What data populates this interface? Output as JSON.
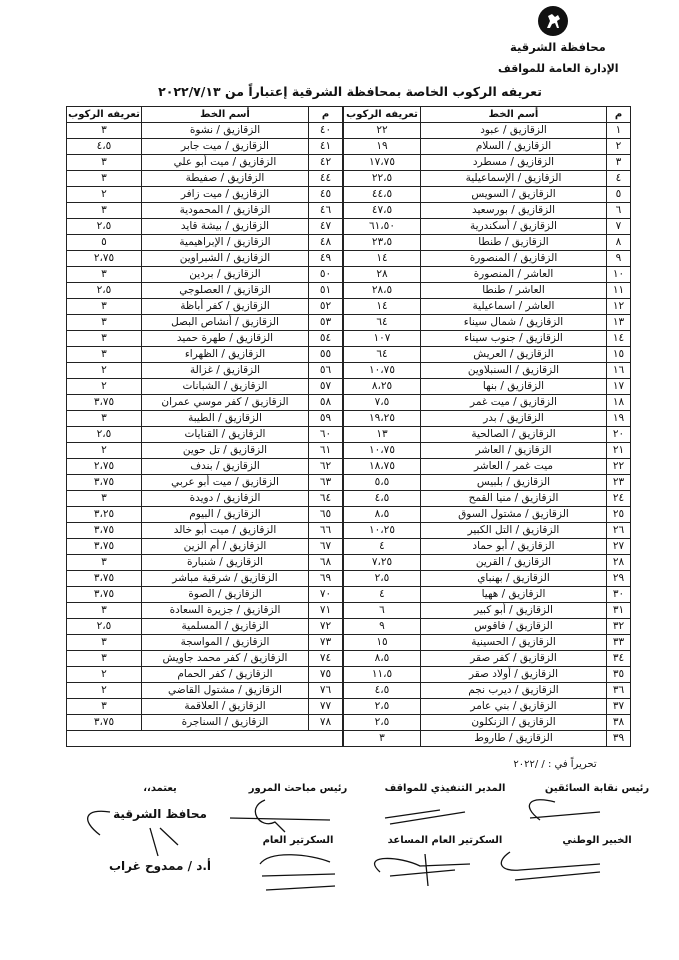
{
  "header": {
    "governorate": "محافظة الشرقية",
    "department": "الإدارة العامة للمواقف",
    "title": "تعريفه الركوب الخاصة بمحافظة الشرقية إعتباراً من ٢٠٢٢/٧/١٣"
  },
  "columns": {
    "num": "م",
    "line": "أسم الخط",
    "fare": "تعريفه الركوب"
  },
  "right_table": [
    [
      "١",
      "الزقازيق / عبود",
      "٢٢"
    ],
    [
      "٢",
      "الزقازيق / السلام",
      "١٩"
    ],
    [
      "٣",
      "الزقازيق / مسطرد",
      "١٧،٧٥"
    ],
    [
      "٤",
      "الزقازيق / الإسماعيلية",
      "٢٢،٥"
    ],
    [
      "٥",
      "الزقازيق / السويس",
      "٤٤،٥"
    ],
    [
      "٦",
      "الزقازيق / بورسعيد",
      "٤٧،٥"
    ],
    [
      "٧",
      "الزقازيق / أسكندرية",
      "٦١،٥٠"
    ],
    [
      "٨",
      "الزقازيق / طنطا",
      "٢٣،٥"
    ],
    [
      "٩",
      "الزقازيق / المنصورة",
      "١٤"
    ],
    [
      "١٠",
      "العاشر / المنصورة",
      "٢٨"
    ],
    [
      "١١",
      "العاشر / طنطا",
      "٢٨،٥"
    ],
    [
      "١٢",
      "العاشر / اسماعيلية",
      "١٤"
    ],
    [
      "١٣",
      "الزقازيق / شمال سيناء",
      "٦٤"
    ],
    [
      "١٤",
      "الزقازيق / جنوب سيناء",
      "١٠٧"
    ],
    [
      "١٥",
      "الزقازيق / العريش",
      "٦٤"
    ],
    [
      "١٦",
      "الزقازيق / السنبلاوين",
      "١٠،٧٥"
    ],
    [
      "١٧",
      "الزقازيق / بنها",
      "٨،٢٥"
    ],
    [
      "١٨",
      "الزقازيق / ميت غمر",
      "٧،٥"
    ],
    [
      "١٩",
      "الزقازيق / بدر",
      "١٩،٢٥"
    ],
    [
      "٢٠",
      "الزقازيق / الصالحية",
      "١٣"
    ],
    [
      "٢١",
      "الزقازيق / العاشر",
      "١٠،٧٥"
    ],
    [
      "٢٢",
      "ميت غمر / العاشر",
      "١٨،٧٥"
    ],
    [
      "٢٣",
      "الزقازيق / بلبيس",
      "٥،٥"
    ],
    [
      "٢٤",
      "الزقازيق / منيا القمح",
      "٤،٥"
    ],
    [
      "٢٥",
      "الزقازيق / مشتول السوق",
      "٨،٥"
    ],
    [
      "٢٦",
      "الزقازيق / التل الكبير",
      "١٠،٢٥"
    ],
    [
      "٢٧",
      "الزقازيق / أبو حماد",
      "٤"
    ],
    [
      "٢٨",
      "الزقازيق / القرين",
      "٧،٢٥"
    ],
    [
      "٢٩",
      "الزقازيق / بهنباي",
      "٢،٥"
    ],
    [
      "٣٠",
      "الزقازيق / ههيا",
      "٤"
    ],
    [
      "٣١",
      "الزقازيق / أبو كبير",
      "٦"
    ],
    [
      "٣٢",
      "الزقازيق / فاقوس",
      "٩"
    ],
    [
      "٣٣",
      "الزقازيق / الحسينية",
      "١٥"
    ],
    [
      "٣٤",
      "الزقازيق / كفر صقر",
      "٨،٥"
    ],
    [
      "٣٥",
      "الزقازيق / أولاد صقر",
      "١١،٥"
    ],
    [
      "٣٦",
      "الزقازيق / ديرب نجم",
      "٤،٥"
    ],
    [
      "٣٧",
      "الزقازيق / بني عامر",
      "٢،٥"
    ],
    [
      "٣٨",
      "الزقازيق / الزنكلون",
      "٢،٥"
    ],
    [
      "٣٩",
      "الزقازيق / طاروط",
      "٣"
    ]
  ],
  "left_table": [
    [
      "٤٠",
      "الزقازيق / نشوة",
      "٣"
    ],
    [
      "٤١",
      "الزقازيق / ميت جابر",
      "٤،٥"
    ],
    [
      "٤٢",
      "الزقازيق / ميت أبو علي",
      "٣"
    ],
    [
      "٤٤",
      "الزقازيق / صفيطة",
      "٣"
    ],
    [
      "٤٥",
      "الزقازيق / ميت زافر",
      "٢"
    ],
    [
      "٤٦",
      "الزقازيق / المحمودية",
      "٣"
    ],
    [
      "٤٧",
      "الزقازيق / بيشة قايد",
      "٢،٥"
    ],
    [
      "٤٨",
      "الزقازيق / الإبراهيمية",
      "٥"
    ],
    [
      "٤٩",
      "الزقازيق / الشبراوين",
      "٢،٧٥"
    ],
    [
      "٥٠",
      "الزقازيق / بردين",
      "٣"
    ],
    [
      "٥١",
      "الزقازيق / العصلوجي",
      "٢،٥"
    ],
    [
      "٥٢",
      "الزقازيق / كفر أباظة",
      "٣"
    ],
    [
      "٥٣",
      "الزقازيق / أنشاص البصل",
      "٣"
    ],
    [
      "٥٤",
      "الزقازيق / طهرة حميد",
      "٣"
    ],
    [
      "٥٥",
      "الزقازيق / الظهراء",
      "٣"
    ],
    [
      "٥٦",
      "الزقازيق / غزالة",
      "٢"
    ],
    [
      "٥٧",
      "الزقازيق / الشبانات",
      "٢"
    ],
    [
      "٥٨",
      "الزقازيق / كفر موسي عمران",
      "٣،٧٥"
    ],
    [
      "٥٩",
      "الزقازيق / الطيبة",
      "٣"
    ],
    [
      "٦٠",
      "الزقازيق / القنايات",
      "٢،٥"
    ],
    [
      "٦١",
      "الزقازيق / تل حوين",
      "٢"
    ],
    [
      "٦٢",
      "الزقازيق / بندف",
      "٢،٧٥"
    ],
    [
      "٦٣",
      "الزقازيق / ميت أبو عربي",
      "٣،٧٥"
    ],
    [
      "٦٤",
      "الزقازيق / دويدة",
      "٣"
    ],
    [
      "٦٥",
      "الزقازيق / البيوم",
      "٣،٢٥"
    ],
    [
      "٦٦",
      "الزقازيق / ميت أبو خالد",
      "٣،٧٥"
    ],
    [
      "٦٧",
      "الزقازيق / أم الزين",
      "٣،٧٥"
    ],
    [
      "٦٨",
      "الزقازيق / شنبارة",
      "٣"
    ],
    [
      "٦٩",
      "الزقازيق / شرقية مباشر",
      "٣،٧٥"
    ],
    [
      "٧٠",
      "الزقازيق / الصوة",
      "٣،٧٥"
    ],
    [
      "٧١",
      "الزقازيق / جزيرة السعادة",
      "٣"
    ],
    [
      "٧٢",
      "الزقازيق / المسلمية",
      "٢،٥"
    ],
    [
      "٧٣",
      "الزقازيق / المواسجة",
      "٣"
    ],
    [
      "٧٤",
      "الزقازيق / كفر محمد جاويش",
      "٣"
    ],
    [
      "٧٥",
      "الزقازيق / كفر الحمام",
      "٢"
    ],
    [
      "٧٦",
      "الزقازيق / مشتول القاضي",
      "٢"
    ],
    [
      "٧٧",
      "الزقازيق / العلاقمة",
      "٣"
    ],
    [
      "٧٨",
      "الزقازيق / السناجرة",
      "٣،٧٥"
    ]
  ],
  "footer": {
    "date_line": "تحريراً في :    /    /٢٠٢٢",
    "sig_drivers_union": "رئيس نقابة السائقين",
    "sig_exec_director": "المدير التنفيذي للمواقف",
    "sig_traffic_police": "رئيس مباحث المرور",
    "approved": "يعتمد،،",
    "sig_national_expert": "الخبير الوطني",
    "sig_asst_secretary": "السكرتير العام المساعد",
    "sig_secretary": "السكرتير العام",
    "governor_title": "محافظ الشرقية",
    "governor_name": "أ.د / ممدوح غراب"
  }
}
